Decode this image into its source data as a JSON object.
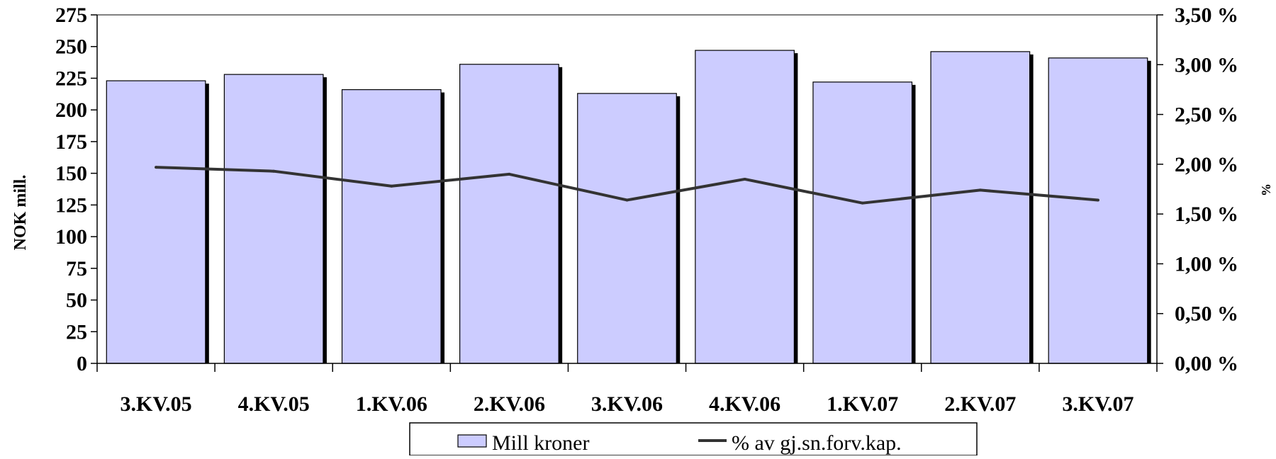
{
  "chart_data": {
    "type": "bar",
    "categories": [
      "3.KV.05",
      "4.KV.05",
      "1.KV.06",
      "2.KV.06",
      "3.KV.06",
      "4.KV.06",
      "1.KV.07",
      "2.KV.07",
      "3.KV.07"
    ],
    "series": [
      {
        "name": "Mill kroner",
        "type": "bar",
        "axis": "left",
        "color": "#CCCCFF",
        "values": [
          223,
          228,
          216,
          236,
          213,
          247,
          222,
          246,
          241
        ]
      },
      {
        "name": "% av gj.sn.forv.kap.",
        "type": "line",
        "axis": "right",
        "color": "#333333",
        "values": [
          1.97,
          1.93,
          1.78,
          1.9,
          1.64,
          1.85,
          1.61,
          1.74,
          1.64
        ]
      }
    ],
    "ylabel": "NOK mill.",
    "y2label": "%",
    "ylim": [
      0,
      275
    ],
    "yticks": [
      "0",
      "25",
      "50",
      "75",
      "100",
      "125",
      "150",
      "175",
      "200",
      "225",
      "250",
      "275"
    ],
    "y2lim": [
      0,
      3.5
    ],
    "y2ticks": [
      "0,00 %",
      "0,50 %",
      "1,00 %",
      "1,50 %",
      "2,00 %",
      "2,50 %",
      "3,00 %",
      "3,50 %"
    ],
    "legend_position": "bottom",
    "grid": false
  }
}
